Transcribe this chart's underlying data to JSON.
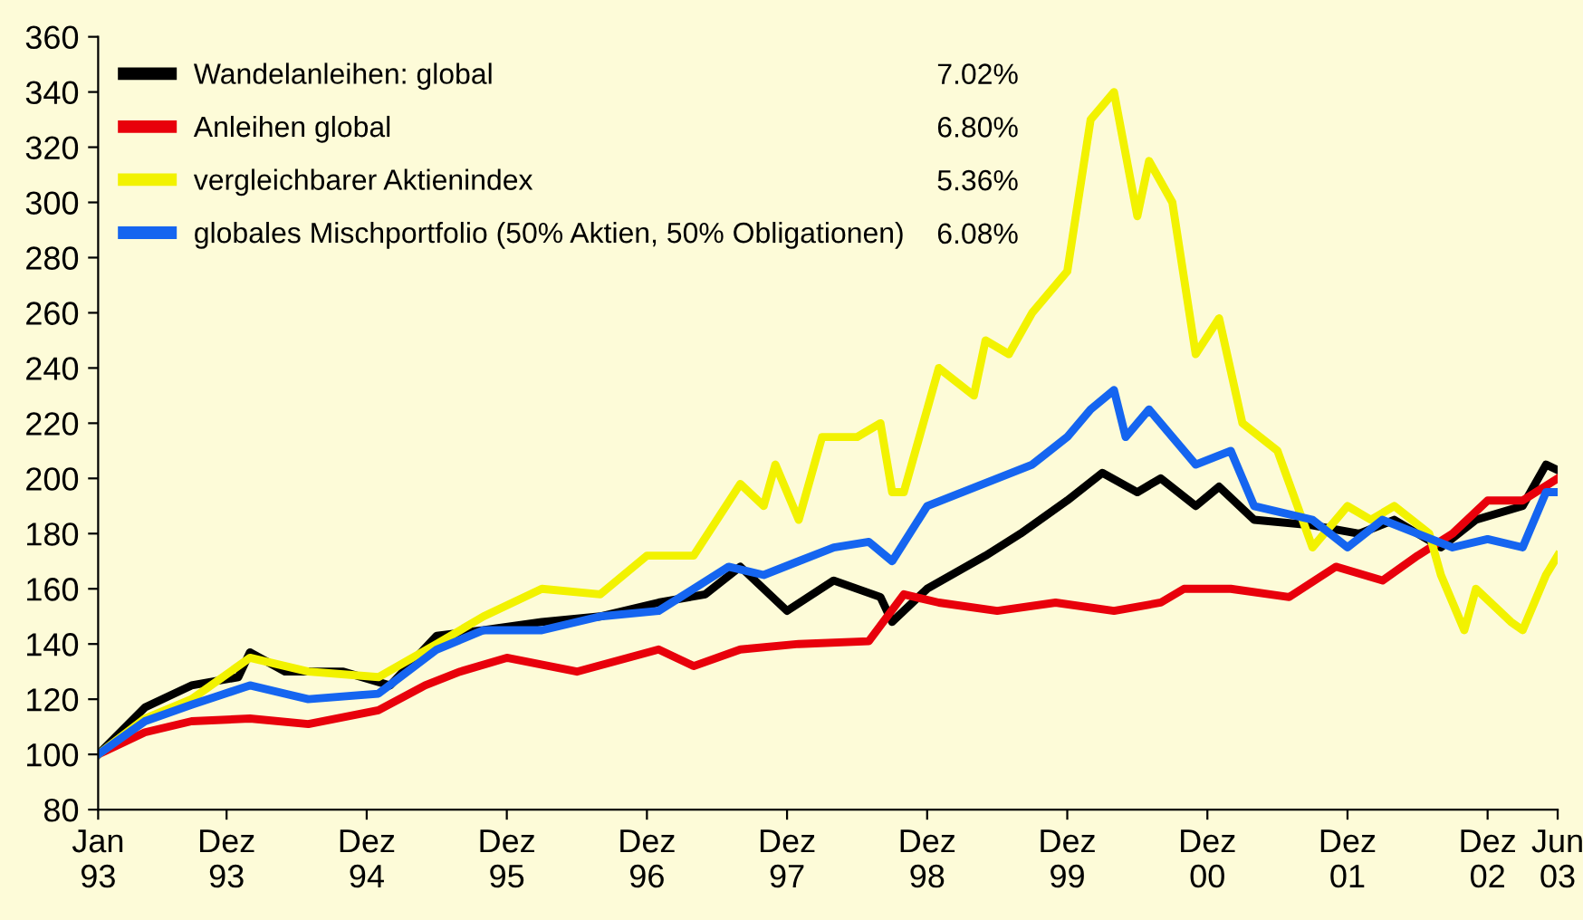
{
  "chart_data": {
    "type": "line",
    "xlim": [
      "1993-01",
      "2003-06"
    ],
    "ylim": [
      80,
      360
    ],
    "xticks": [
      {
        "value": "1993-01",
        "label": "Jan\n93"
      },
      {
        "value": "1993-12",
        "label": "Dez\n93"
      },
      {
        "value": "1994-12",
        "label": "Dez\n94"
      },
      {
        "value": "1995-12",
        "label": "Dez\n95"
      },
      {
        "value": "1996-12",
        "label": "Dez\n96"
      },
      {
        "value": "1997-12",
        "label": "Dez\n97"
      },
      {
        "value": "1998-12",
        "label": "Dez\n98"
      },
      {
        "value": "1999-12",
        "label": "Dez\n99"
      },
      {
        "value": "2000-12",
        "label": "Dez\n00"
      },
      {
        "value": "2001-12",
        "label": "Dez\n01"
      },
      {
        "value": "2002-12",
        "label": "Dez\n02"
      },
      {
        "value": "2003-06",
        "label": "Jun\n03"
      }
    ],
    "yticks": [
      80,
      100,
      120,
      140,
      160,
      180,
      200,
      220,
      240,
      260,
      280,
      300,
      320,
      340,
      360
    ],
    "grid": false,
    "legend": "top left",
    "marker": "none",
    "line_style": "solid",
    "annotations": [
      "7.02%",
      "6.80%",
      "5.36%",
      "6.08%"
    ],
    "series": [
      {
        "name": "Wandelanleihen: global",
        "color": "#000000",
        "x": [
          "1993-01",
          "1993-05",
          "1993-09",
          "1994-01",
          "1994-02",
          "1994-05",
          "1994-10",
          "1995-02",
          "1995-06",
          "1995-10",
          "1996-03",
          "1996-08",
          "1997-01",
          "1997-05",
          "1997-08",
          "1997-12",
          "1998-04",
          "1998-08",
          "1998-09",
          "1998-12",
          "1999-05",
          "1999-08",
          "1999-12",
          "2000-03",
          "2000-06",
          "2000-08",
          "2000-11",
          "2001-01",
          "2001-04",
          "2001-09",
          "2002-01",
          "2002-04",
          "2002-08",
          "2002-11",
          "2003-03",
          "2003-05",
          "2003-06"
        ],
        "values": [
          100,
          117,
          125,
          128,
          137,
          130,
          130,
          125,
          143,
          145,
          148,
          150,
          155,
          158,
          168,
          152,
          163,
          157,
          148,
          160,
          172,
          180,
          192,
          202,
          195,
          200,
          190,
          197,
          185,
          183,
          180,
          185,
          175,
          185,
          190,
          205,
          203
        ]
      },
      {
        "name": "Anleihen global",
        "color": "#e8000b",
        "x": [
          "1993-01",
          "1993-05",
          "1993-09",
          "1994-02",
          "1994-07",
          "1995-01",
          "1995-05",
          "1995-08",
          "1995-12",
          "1996-06",
          "1997-01",
          "1997-04",
          "1997-08",
          "1998-01",
          "1998-07",
          "1998-10",
          "1999-01",
          "1999-06",
          "1999-11",
          "2000-04",
          "2000-08",
          "2000-10",
          "2001-02",
          "2001-07",
          "2001-11",
          "2002-03",
          "2002-06",
          "2002-09",
          "2002-12",
          "2003-03",
          "2003-06"
        ],
        "values": [
          100,
          108,
          112,
          113,
          111,
          116,
          125,
          130,
          135,
          130,
          138,
          132,
          138,
          140,
          141,
          158,
          155,
          152,
          155,
          152,
          155,
          160,
          160,
          157,
          168,
          163,
          172,
          180,
          192,
          192,
          200
        ]
      },
      {
        "name": "vergleichbarer Aktienindex",
        "color": "#f2f200",
        "x": [
          "1993-01",
          "1993-05",
          "1993-09",
          "1994-02",
          "1994-07",
          "1995-01",
          "1995-06",
          "1995-10",
          "1996-03",
          "1996-08",
          "1996-12",
          "1997-04",
          "1997-08",
          "1997-10",
          "1997-11",
          "1998-01",
          "1998-03",
          "1998-06",
          "1998-08",
          "1998-09",
          "1998-10",
          "1999-01",
          "1999-04",
          "1999-05",
          "1999-07",
          "1999-09",
          "1999-12",
          "2000-02",
          "2000-04",
          "2000-06",
          "2000-07",
          "2000-09",
          "2000-11",
          "2001-01",
          "2001-03",
          "2001-06",
          "2001-09",
          "2001-12",
          "2002-02",
          "2002-04",
          "2002-07",
          "2002-08",
          "2002-10",
          "2002-11",
          "2003-02",
          "2003-03",
          "2003-05",
          "2003-06"
        ],
        "values": [
          100,
          113,
          120,
          135,
          130,
          128,
          140,
          150,
          160,
          158,
          172,
          172,
          198,
          190,
          205,
          185,
          215,
          215,
          220,
          195,
          195,
          240,
          230,
          250,
          245,
          260,
          275,
          330,
          340,
          295,
          315,
          300,
          245,
          258,
          220,
          210,
          175,
          190,
          185,
          190,
          180,
          165,
          145,
          160,
          148,
          145,
          165,
          172
        ]
      },
      {
        "name": "globales Mischportfolio (50% Aktien, 50% Obligationen)",
        "color": "#1565f0",
        "x": [
          "1993-01",
          "1993-05",
          "1993-09",
          "1994-02",
          "1994-07",
          "1995-01",
          "1995-06",
          "1995-10",
          "1996-03",
          "1996-08",
          "1997-01",
          "1997-04",
          "1997-07",
          "1997-10",
          "1998-01",
          "1998-04",
          "1998-07",
          "1998-09",
          "1998-12",
          "1999-03",
          "1999-06",
          "1999-09",
          "1999-12",
          "2000-02",
          "2000-04",
          "2000-05",
          "2000-07",
          "2000-09",
          "2000-11",
          "2001-02",
          "2001-04",
          "2001-09",
          "2001-12",
          "2002-03",
          "2002-06",
          "2002-09",
          "2002-12",
          "2003-03",
          "2003-05",
          "2003-06"
        ],
        "values": [
          100,
          112,
          118,
          125,
          120,
          122,
          138,
          145,
          145,
          150,
          152,
          160,
          168,
          165,
          170,
          175,
          177,
          170,
          190,
          195,
          200,
          205,
          215,
          225,
          232,
          215,
          225,
          215,
          205,
          210,
          190,
          185,
          175,
          185,
          180,
          175,
          178,
          175,
          195,
          195
        ]
      }
    ]
  }
}
